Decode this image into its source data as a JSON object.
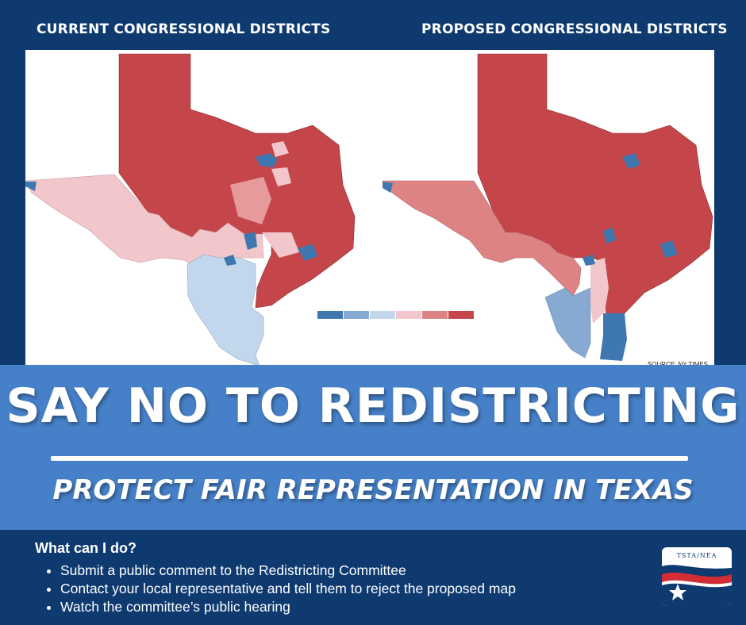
{
  "maps": {
    "current_title": "CURRENT CONGRESSIONAL DISTRICTS",
    "proposed_title": "PROPOSED CONGRESSIONAL DISTRICTS",
    "source": "SOURCE: NY TIMES",
    "legend_colors": [
      "#3f78b0",
      "#86aad2",
      "#c3d7ec",
      "#f2c7cb",
      "#dd8383",
      "#c4464b"
    ]
  },
  "headline": "SAY NO TO REDISTRICTING",
  "subhead": "PROTECT FAIR REPRESENTATION IN TEXAS",
  "actions": {
    "title": "What can I do?",
    "items": [
      "Submit a public comment to the Redistricting Committee",
      "Contact your local representative and tell them to reject the proposed map",
      "Watch the committee’s public hearing"
    ]
  },
  "logo": {
    "text": "TSTA/NEA"
  },
  "colors": {
    "navy": "#0e3a70",
    "mid_blue": "#4680c8",
    "red": "#c4464b"
  }
}
